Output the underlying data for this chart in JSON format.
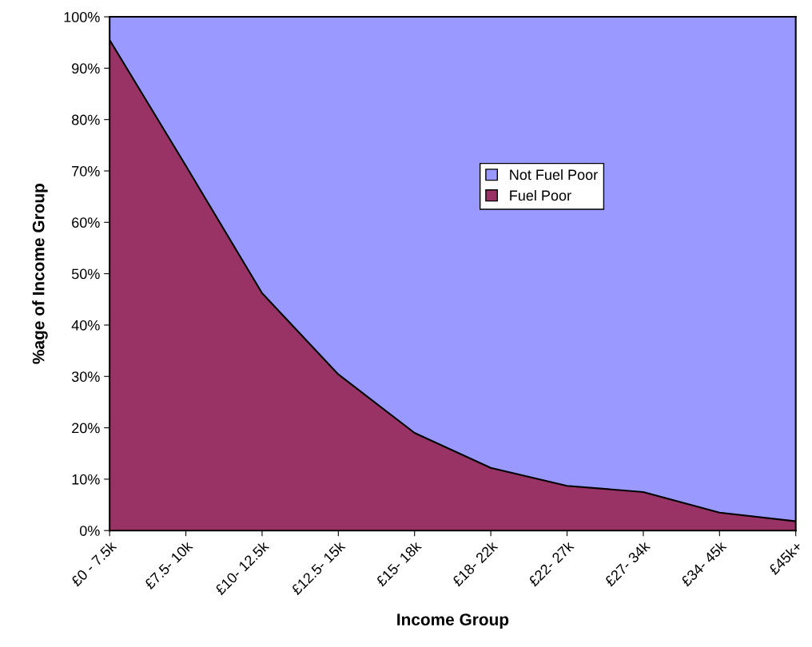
{
  "chart_data": {
    "type": "area",
    "stacked": true,
    "xlabel": "Income Group",
    "ylabel": "%age of Income Group",
    "categories": [
      "£0 - 7.5k",
      "£7.5- 10k",
      "£10- 12.5k",
      "£12.5- 15k",
      "£15- 18k",
      "£18- 22k",
      "£22- 27k",
      "£27- 34k",
      "£34- 45k",
      "£45k+"
    ],
    "series": [
      {
        "name": "Fuel Poor",
        "color": "#993366",
        "values": [
          95.5,
          71,
          46.2,
          30.4,
          19,
          12.2,
          8.7,
          7.5,
          3.5,
          1.8
        ]
      },
      {
        "name": "Not Fuel Poor",
        "color": "#9999ff",
        "values": [
          4.5,
          29,
          53.8,
          69.6,
          81,
          87.8,
          91.3,
          92.5,
          96.5,
          98.2
        ]
      }
    ],
    "ylim": [
      0,
      100
    ],
    "yticks": [
      {
        "value": 0,
        "label": "0%"
      },
      {
        "value": 10,
        "label": "10%"
      },
      {
        "value": 20,
        "label": "20%"
      },
      {
        "value": 30,
        "label": "30%"
      },
      {
        "value": 40,
        "label": "40%"
      },
      {
        "value": 50,
        "label": "50%"
      },
      {
        "value": 60,
        "label": "60%"
      },
      {
        "value": 70,
        "label": "70%"
      },
      {
        "value": 80,
        "label": "80%"
      },
      {
        "value": 90,
        "label": "90%"
      },
      {
        "value": 100,
        "label": "100%"
      }
    ],
    "grid": false,
    "legend": "center"
  }
}
